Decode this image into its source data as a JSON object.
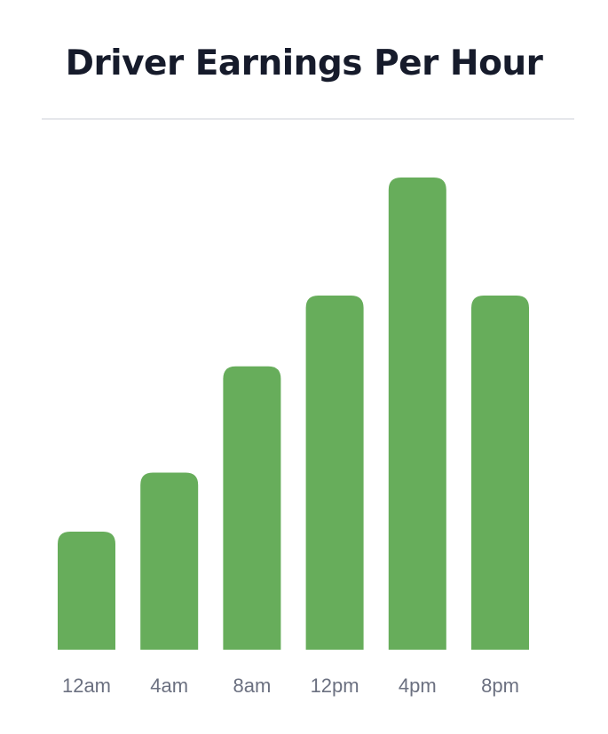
{
  "header": {
    "title": "Driver Earnings Per Hour"
  },
  "chart_data": {
    "type": "bar",
    "title": "Driver Earnings Per Hour",
    "xlabel": "",
    "ylabel": "",
    "categories": [
      "12am",
      "4am",
      "8am",
      "12pm",
      "4pm",
      "8pm"
    ],
    "values": [
      20,
      30,
      48,
      60,
      80,
      60
    ],
    "ylim": [
      0,
      80
    ],
    "grid": false,
    "legend": "none",
    "bar_color": "#67ad5b"
  }
}
